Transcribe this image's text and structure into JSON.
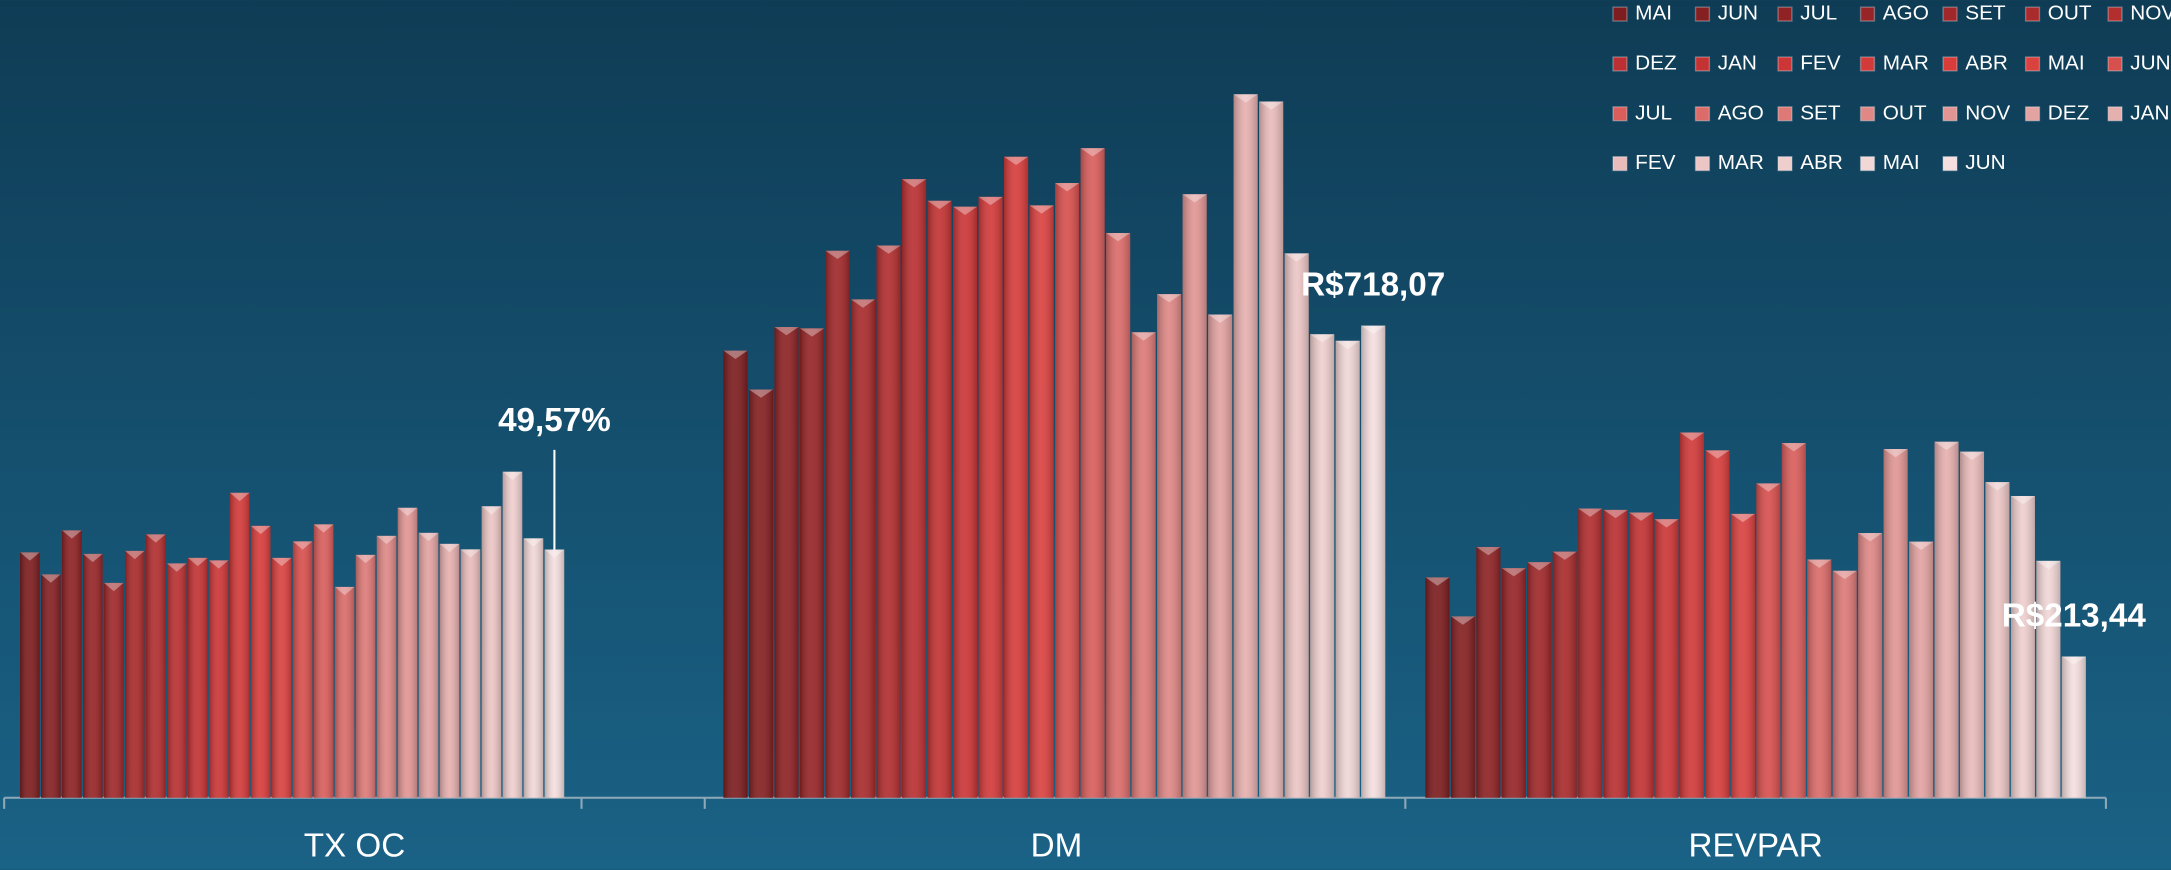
{
  "chart_data": {
    "type": "bar",
    "categories": [
      "TX OC",
      "DM",
      "REVPAR"
    ],
    "ylims": [
      [
        0,
        141
      ],
      [
        0,
        1074
      ],
      [
        0,
        1067
      ]
    ],
    "series": [
      {
        "name": "MAI",
        "color": "#7d1d1f",
        "values": [
          49.0,
          680,
          333
        ]
      },
      {
        "name": "JUN",
        "color": "#852022",
        "values": [
          44.6,
          621,
          274
        ]
      },
      {
        "name": "JUL",
        "color": "#8e2224",
        "values": [
          53.4,
          716,
          379
        ]
      },
      {
        "name": "AGO",
        "color": "#972527",
        "values": [
          48.7,
          714,
          347
        ]
      },
      {
        "name": "SET",
        "color": "#a0282a",
        "values": [
          42.9,
          832,
          356
        ]
      },
      {
        "name": "OUT",
        "color": "#a92b2c",
        "values": [
          49.3,
          758,
          372
        ]
      },
      {
        "name": "NOV",
        "color": "#b22e2f",
        "values": [
          52.6,
          840,
          437
        ]
      },
      {
        "name": "DEZ",
        "color": "#bb3032",
        "values": [
          46.8,
          941,
          435
        ]
      },
      {
        "name": "JAN",
        "color": "#c43334",
        "values": [
          47.9,
          908,
          431
        ]
      },
      {
        "name": "FEV",
        "color": "#cd3637",
        "values": [
          47.4,
          899,
          421
        ]
      },
      {
        "name": "MAR",
        "color": "#d33a3a",
        "values": [
          60.9,
          914,
          552
        ]
      },
      {
        "name": "ABR",
        "color": "#d83d3c",
        "values": [
          54.3,
          975,
          525
        ]
      },
      {
        "name": "MAI",
        "color": "#da4240",
        "values": [
          47.9,
          901,
          429
        ]
      },
      {
        "name": "JUN",
        "color": "#d8504e",
        "values": [
          51.2,
          935,
          475
        ]
      },
      {
        "name": "JUL",
        "color": "#d95e5c",
        "values": [
          54.6,
          988,
          536
        ]
      },
      {
        "name": "AGO",
        "color": "#db6c6a",
        "values": [
          42.1,
          859,
          360
        ]
      },
      {
        "name": "SET",
        "color": "#dd7a78",
        "values": [
          48.5,
          708,
          343
        ]
      },
      {
        "name": "OUT",
        "color": "#df8886",
        "values": [
          52.3,
          766,
          400
        ]
      },
      {
        "name": "NOV",
        "color": "#e19694",
        "values": [
          57.9,
          918,
          527
        ]
      },
      {
        "name": "DEZ",
        "color": "#e3a3a2",
        "values": [
          52.9,
          735,
          387
        ]
      },
      {
        "name": "JAN",
        "color": "#e6b0af",
        "values": [
          50.7,
          1070,
          538
        ]
      },
      {
        "name": "FEV",
        "color": "#e9bcbb",
        "values": [
          49.6,
          1059,
          523
        ]
      },
      {
        "name": "MAR",
        "color": "#ecc6c5",
        "values": [
          58.2,
          828,
          477
        ]
      },
      {
        "name": "ABR",
        "color": "#efcfce",
        "values": [
          65.1,
          705,
          456
        ]
      },
      {
        "name": "MAI",
        "color": "#f2d7d7",
        "values": [
          51.8,
          695,
          358
        ]
      },
      {
        "name": "JUN",
        "color": "#f5dfdf",
        "values": [
          49.57,
          718.07,
          213.44
        ],
        "value_labels": [
          "49,57%",
          "R$718,07",
          "R$213,44"
        ]
      }
    ]
  }
}
